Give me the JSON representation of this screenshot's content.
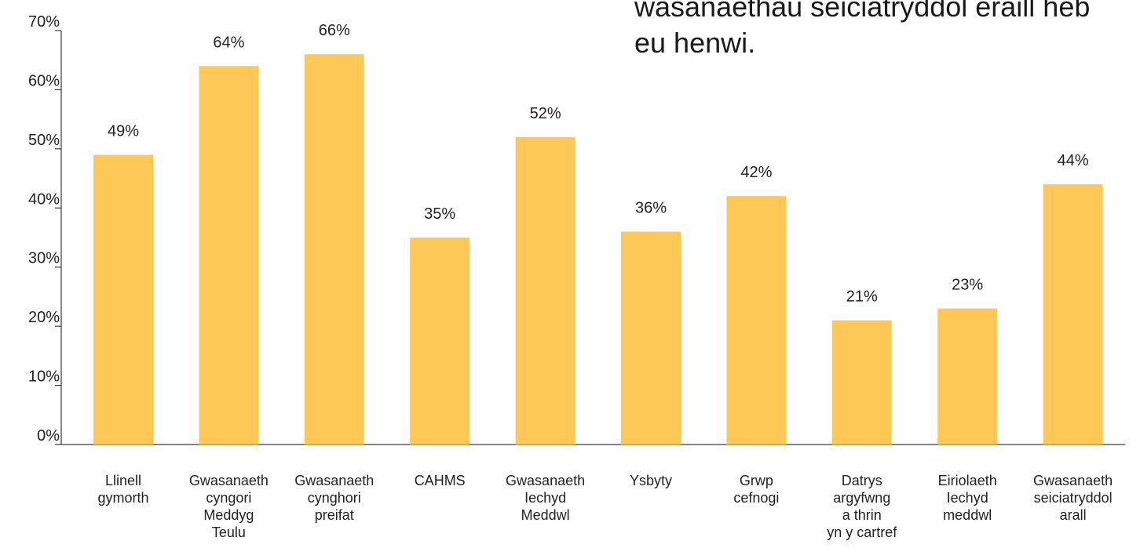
{
  "annotation": {
    "lines": [
      "wasanaethau seiciatryddol eraill heb",
      "eu henwi."
    ]
  },
  "chart_data": {
    "type": "bar",
    "categories": [
      [
        "Llinell",
        "gymorth"
      ],
      [
        "Gwasanaeth",
        "cyngori",
        "Meddyg",
        "Teulu"
      ],
      [
        "Gwasanaeth",
        "cynghori",
        "preifat"
      ],
      [
        "CAHMS"
      ],
      [
        "Gwasanaeth",
        "Iechyd",
        "Meddwl"
      ],
      [
        "Ysbyty"
      ],
      [
        "Grwp",
        "cefnogi"
      ],
      [
        "Datrys",
        "argyfwng",
        "a thrin",
        "yn y cartref"
      ],
      [
        "Eiriolaeth",
        "Iechyd",
        "meddwl"
      ],
      [
        "Gwasanaeth",
        "seiciatryddol",
        "arall"
      ]
    ],
    "values": [
      49,
      64,
      66,
      35,
      52,
      36,
      42,
      21,
      23,
      44
    ],
    "value_labels": [
      "49%",
      "64%",
      "66%",
      "35%",
      "52%",
      "36%",
      "42%",
      "21%",
      "23%",
      "44%"
    ],
    "ylim": [
      0,
      70
    ],
    "yticks": [
      0,
      10,
      20,
      30,
      40,
      50,
      60,
      70
    ],
    "ytick_labels": [
      "0%",
      "10%",
      "20%",
      "30%",
      "40%",
      "50%",
      "60%",
      "70%"
    ],
    "bar_color": "#FDC856",
    "grid": false
  }
}
